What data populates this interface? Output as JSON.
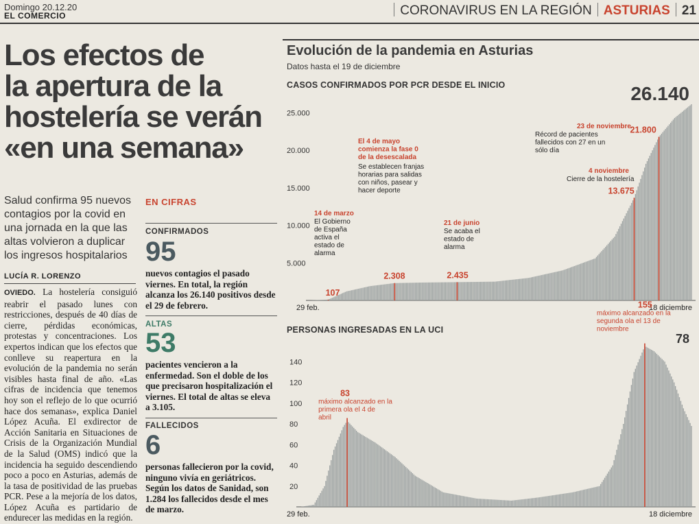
{
  "header": {
    "date": "Domingo 20.12.20",
    "paper": "EL COMERCIO",
    "section": "CORONAVIRUS EN LA REGIÓN",
    "region": "ASTURIAS",
    "page": "21"
  },
  "article": {
    "headline": [
      "Los efectos de",
      "la apertura de la",
      "hostelería se verán",
      "«en una semana»"
    ],
    "subhead": "Salud confirma 95 nuevos contagios por la covid en una jornada en la que las altas volvieron a duplicar los ingresos hospitalarios",
    "author": "LUCÍA R. LORENZO",
    "lead_city": "OVIEDO.",
    "body": "La hostelería consiguió reabrir el pasado lunes con restricciones, después de 40 días de cierre, pérdidas económicas, protestas y concentraciones. Los expertos indican que los efectos que conlleve su reapertura en la evolución de la pandemia no serán visibles hasta final de año. «Las cifras de incidencia que tenemos hoy son el reflejo de lo que ocurrió hace dos semanas», explica Daniel López Acuña. El exdirector de Acción Sanitaria en Situaciones de Crisis de la Organización Mundial de la Salud (OMS) indicó que la incidencia ha seguido descendiendo poco a poco en Asturias, además de la tasa de positividad de las pruebas PCR. Pese a la mejoría de los datos, López Acuña es partidario de endurecer las medidas en la región."
  },
  "cifras": {
    "title": "EN CIFRAS",
    "items": [
      {
        "label": "CONFIRMADOS",
        "value": "95",
        "text": "nuevos contagios el pasado viernes. En total, la región alcanza los 26.140 positivos desde el 29 de febrero."
      },
      {
        "label": "ALTAS",
        "value": "53",
        "text": "pacientes vencieron a la enfermedad. Son el doble de los que precisaron hospitalización el viernes. El total de altas se eleva a 3.105."
      },
      {
        "label": "FALLECIDOS",
        "value": "6",
        "text": "personas fallecieron por la covid, ninguno vivía en geriátricos. Según los datos de Sanidad, son 1.284 los fallecidos desde el mes de marzo."
      }
    ]
  },
  "graphic": {
    "title": "Evolución de la pandemia en Asturias",
    "subtitle": "Datos hasta el 19 de diciembre",
    "colors": {
      "bars": "#9aa0a0",
      "accent": "#c8432e",
      "text": "#333333"
    }
  },
  "chart_data": [
    {
      "type": "bar",
      "title": "CASOS CONFIRMADOS POR PCR DESDE EL INICIO",
      "x_start_label": "29 feb.",
      "x_end_label": "18 diciembre",
      "ylim": [
        0,
        26140
      ],
      "y_ticks": [
        5000,
        10000,
        15000,
        20000,
        25000
      ],
      "y_tick_labels": [
        "5.000",
        "10.000",
        "15.000",
        "20.000",
        "25.000"
      ],
      "total_label": "26.140",
      "grid": false,
      "points": [
        {
          "date": "2020-02-29",
          "value": 0
        },
        {
          "date": "2020-03-14",
          "value": 107
        },
        {
          "date": "2020-03-28",
          "value": 1200
        },
        {
          "date": "2020-04-15",
          "value": 1900
        },
        {
          "date": "2020-05-04",
          "value": 2308
        },
        {
          "date": "2020-05-25",
          "value": 2380
        },
        {
          "date": "2020-06-21",
          "value": 2435
        },
        {
          "date": "2020-07-20",
          "value": 2500
        },
        {
          "date": "2020-08-15",
          "value": 3000
        },
        {
          "date": "2020-09-10",
          "value": 4000
        },
        {
          "date": "2020-10-05",
          "value": 5600
        },
        {
          "date": "2020-10-20",
          "value": 8500
        },
        {
          "date": "2020-11-04",
          "value": 13675
        },
        {
          "date": "2020-11-13",
          "value": 18200
        },
        {
          "date": "2020-11-23",
          "value": 21800
        },
        {
          "date": "2020-12-05",
          "value": 24300
        },
        {
          "date": "2020-12-18",
          "value": 26140
        }
      ],
      "annotations": [
        {
          "date": "2020-03-14",
          "value_label": "107",
          "title": "14 de marzo",
          "text": "El Gobierno de España activa el estado de alarma"
        },
        {
          "date": "2020-05-04",
          "value_label": "2.308",
          "title": "El 4 de mayo comienza la fase 0 de la desescalada",
          "text": "Se establecen franjas horarias para salidas con niños, pasear y hacer deporte"
        },
        {
          "date": "2020-06-21",
          "value_label": "2.435",
          "title": "21 de junio",
          "text": "Se acaba el estado de alarma"
        },
        {
          "date": "2020-11-04",
          "value_label": "13.675",
          "title": "4 noviembre",
          "text": "Cierre de la hostelería"
        },
        {
          "date": "2020-11-23",
          "value_label": "21.800",
          "title": "23 de noviembre",
          "text": "Récord de pacientes fallecidos con 27 en un sólo día"
        }
      ]
    },
    {
      "type": "bar",
      "title": "PERSONAS INGRESADAS EN LA UCI",
      "x_start_label": "29 feb.",
      "x_end_label": "18 diciembre",
      "ylim": [
        0,
        160
      ],
      "y_ticks": [
        20,
        40,
        60,
        80,
        100,
        120,
        140
      ],
      "last_value_label": "78",
      "grid": false,
      "points": [
        {
          "date": "2020-02-29",
          "value": 0
        },
        {
          "date": "2020-03-10",
          "value": 2
        },
        {
          "date": "2020-03-18",
          "value": 20
        },
        {
          "date": "2020-03-25",
          "value": 55
        },
        {
          "date": "2020-04-01",
          "value": 77
        },
        {
          "date": "2020-04-04",
          "value": 83
        },
        {
          "date": "2020-04-12",
          "value": 72
        },
        {
          "date": "2020-04-25",
          "value": 62
        },
        {
          "date": "2020-05-10",
          "value": 48
        },
        {
          "date": "2020-05-25",
          "value": 30
        },
        {
          "date": "2020-06-15",
          "value": 14
        },
        {
          "date": "2020-07-10",
          "value": 8
        },
        {
          "date": "2020-08-05",
          "value": 6
        },
        {
          "date": "2020-08-25",
          "value": 9
        },
        {
          "date": "2020-09-20",
          "value": 14
        },
        {
          "date": "2020-10-10",
          "value": 20
        },
        {
          "date": "2020-10-20",
          "value": 40
        },
        {
          "date": "2020-10-28",
          "value": 80
        },
        {
          "date": "2020-11-05",
          "value": 130
        },
        {
          "date": "2020-11-13",
          "value": 155
        },
        {
          "date": "2020-11-20",
          "value": 150
        },
        {
          "date": "2020-11-28",
          "value": 140
        },
        {
          "date": "2020-12-05",
          "value": 120
        },
        {
          "date": "2020-12-12",
          "value": 95
        },
        {
          "date": "2020-12-18",
          "value": 78
        }
      ],
      "annotations": [
        {
          "date": "2020-04-04",
          "value_label": "83",
          "text": "máximo alcanzado en la primera ola el 4 de abril"
        },
        {
          "date": "2020-11-13",
          "value_label": "155",
          "text": "máximo alcanzado en la segunda ola el 13 de noviembre"
        }
      ]
    }
  ]
}
